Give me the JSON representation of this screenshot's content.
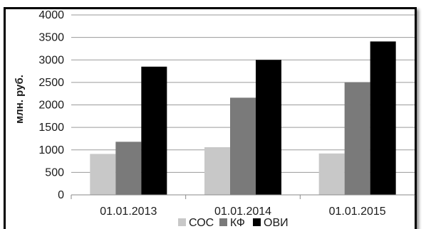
{
  "chart_data": {
    "type": "bar",
    "categories": [
      "01.01.2013",
      "01.01.2014",
      "01.01.2015"
    ],
    "series": [
      {
        "name": "СОС",
        "values": [
          910,
          1060,
          920
        ],
        "color": "#c8c8c8"
      },
      {
        "name": "КФ",
        "values": [
          1180,
          2160,
          2500
        ],
        "color": "#7a7a7a"
      },
      {
        "name": "ОВИ",
        "values": [
          2850,
          3000,
          3410
        ],
        "color": "#000000"
      }
    ],
    "ylabel": "млн. руб.",
    "ylim": [
      0,
      4000
    ],
    "yticks": [
      "0",
      "500",
      "1000",
      "1500",
      "2000",
      "2500",
      "3000",
      "3500",
      "4000"
    ],
    "grid": true,
    "legend_position": "bottom"
  }
}
